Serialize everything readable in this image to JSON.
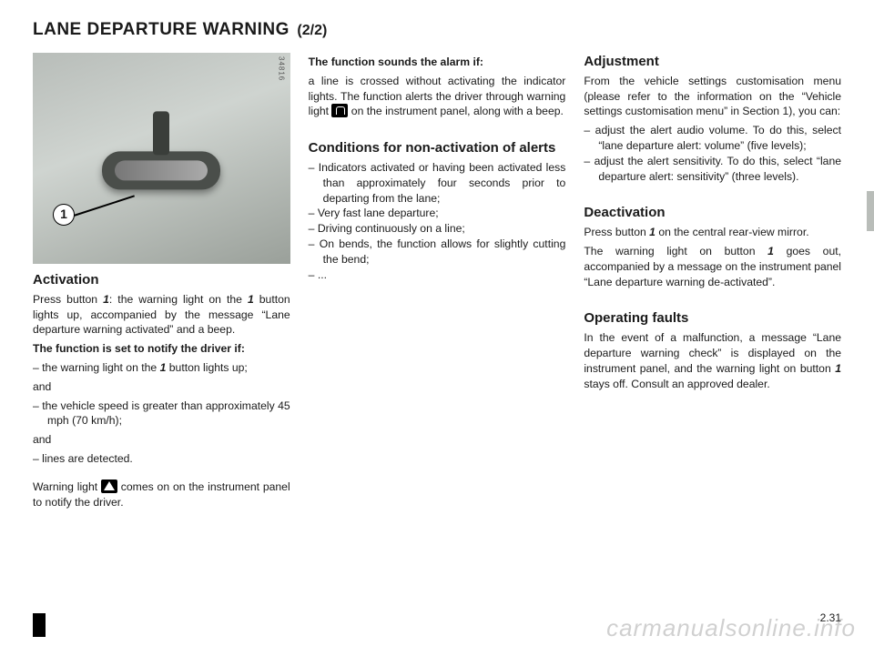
{
  "title": {
    "main": "LANE DEPARTURE WARNING",
    "part": "(2/2)"
  },
  "photo": {
    "tag": "34816",
    "callout": "1"
  },
  "col1": {
    "activation_h": "Activation",
    "activation_p": "Press button ",
    "activation_ref": "1",
    "activation_p2": ": the warning light on the ",
    "activation_ref2": "1",
    "activation_p3": " button lights up, accompanied by the message “Lane departure warning activated” and a beep.",
    "notify_h": "The function is set to notify the driver if:",
    "notify_li1a": "the warning light on the ",
    "notify_li1_ref": "1",
    "notify_li1b": " button lights up;",
    "and1": "and",
    "notify_li2": "the vehicle speed is greater than approximately 45 mph (70 km/h);",
    "and2": "and",
    "notify_li3": "lines are detected.",
    "warn_p1": "Warning light ",
    "warn_p2": " comes on on the instrument panel to notify the driver."
  },
  "col2": {
    "alarm_h": "The function sounds the alarm if:",
    "alarm_p1": "a line is crossed without activating the indicator lights. The function alerts the driver through warning light ",
    "alarm_p2": " on the instrument panel, along with a beep.",
    "cond_h": "Conditions for non-activation of alerts",
    "cond_li1": "Indicators activated or having been activated less than approximately four seconds prior to departing from the lane;",
    "cond_li2": "Very fast lane departure;",
    "cond_li3": "Driving continuously on a line;",
    "cond_li4": "On bends, the function allows for slightly cutting the bend;",
    "cond_li5": "..."
  },
  "col3": {
    "adj_h": "Adjustment",
    "adj_p": "From the vehicle settings customisation menu (please refer to the information on the “Vehicle settings customisation menu” in Section 1), you can:",
    "adj_li1": "adjust the alert audio volume. To do this, select “lane departure alert: volume” (five levels);",
    "adj_li2": "adjust the alert sensitivity. To do this, select “lane departure alert: sensitivity” (three levels).",
    "deact_h": "Deactivation",
    "deact_p1a": "Press button ",
    "deact_ref1": "1",
    "deact_p1b": " on the central rear-view mirror.",
    "deact_p2a": "The warning light on button ",
    "deact_ref2": "1",
    "deact_p2b": " goes out, accompanied by a message on the instrument panel “Lane departure warning de-activated”.",
    "fault_h": "Operating faults",
    "fault_p1": "In the event of a malfunction, a message “Lane departure warning check” is displayed on the instrument panel, and the warning light on button ",
    "fault_ref": "1",
    "fault_p2": " stays off. Consult an approved dealer."
  },
  "pagenum": "2.31",
  "watermark": "carmanualsonline.info"
}
